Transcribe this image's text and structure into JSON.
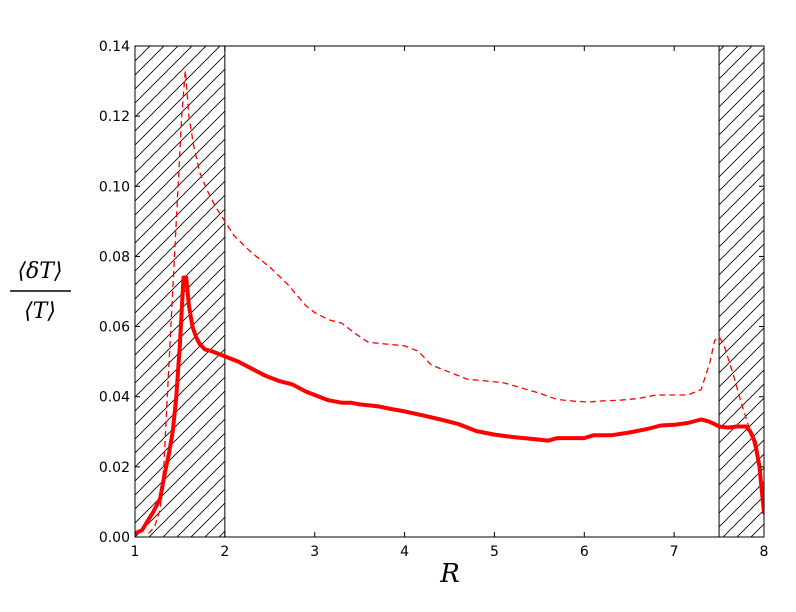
{
  "chart_data": {
    "type": "line",
    "xlabel": "R",
    "ylabel": {
      "numerator": "⟨δT⟩",
      "denominator": "⟨T⟩"
    },
    "xlim": [
      1,
      8
    ],
    "ylim": [
      0,
      0.14
    ],
    "xticks": [
      "1",
      "2",
      "3",
      "4",
      "5",
      "6",
      "7",
      "8"
    ],
    "yticks": [
      "0.00",
      "0.02",
      "0.04",
      "0.06",
      "0.08",
      "0.10",
      "0.12",
      "0.14"
    ],
    "grid": false,
    "legend": "none",
    "hatched_regions": [
      [
        1,
        2
      ],
      [
        7.5,
        8
      ]
    ],
    "series": [
      {
        "style": "solid",
        "color": "#ff0000",
        "points": [
          [
            1.0,
            0.001
          ],
          [
            1.08,
            0.002
          ],
          [
            1.15,
            0.005
          ],
          [
            1.2,
            0.007
          ],
          [
            1.28,
            0.011
          ],
          [
            1.33,
            0.018
          ],
          [
            1.38,
            0.024
          ],
          [
            1.42,
            0.03
          ],
          [
            1.46,
            0.04
          ],
          [
            1.5,
            0.055
          ],
          [
            1.54,
            0.074
          ],
          [
            1.57,
            0.074
          ],
          [
            1.6,
            0.066
          ],
          [
            1.64,
            0.06
          ],
          [
            1.68,
            0.057
          ],
          [
            1.72,
            0.055
          ],
          [
            1.78,
            0.0535
          ],
          [
            1.85,
            0.053
          ],
          [
            1.95,
            0.052
          ],
          [
            2.05,
            0.051
          ],
          [
            2.15,
            0.05
          ],
          [
            2.3,
            0.048
          ],
          [
            2.45,
            0.046
          ],
          [
            2.6,
            0.0445
          ],
          [
            2.75,
            0.0435
          ],
          [
            2.9,
            0.0415
          ],
          [
            3.0,
            0.0405
          ],
          [
            3.15,
            0.039
          ],
          [
            3.3,
            0.0383
          ],
          [
            3.4,
            0.0383
          ],
          [
            3.5,
            0.0378
          ],
          [
            3.7,
            0.0373
          ],
          [
            3.85,
            0.0365
          ],
          [
            4.0,
            0.0358
          ],
          [
            4.2,
            0.0347
          ],
          [
            4.4,
            0.0335
          ],
          [
            4.6,
            0.0322
          ],
          [
            4.8,
            0.0302
          ],
          [
            5.0,
            0.0292
          ],
          [
            5.2,
            0.0285
          ],
          [
            5.4,
            0.028
          ],
          [
            5.6,
            0.0275
          ],
          [
            5.7,
            0.0282
          ],
          [
            5.9,
            0.0282
          ],
          [
            6.0,
            0.0282
          ],
          [
            6.1,
            0.029
          ],
          [
            6.3,
            0.029
          ],
          [
            6.5,
            0.0298
          ],
          [
            6.7,
            0.0308
          ],
          [
            6.85,
            0.0318
          ],
          [
            7.0,
            0.032
          ],
          [
            7.15,
            0.0325
          ],
          [
            7.3,
            0.0335
          ],
          [
            7.38,
            0.033
          ],
          [
            7.45,
            0.0322
          ],
          [
            7.5,
            0.0315
          ],
          [
            7.6,
            0.0312
          ],
          [
            7.7,
            0.0315
          ],
          [
            7.8,
            0.0315
          ],
          [
            7.85,
            0.03
          ],
          [
            7.9,
            0.027
          ],
          [
            7.95,
            0.02
          ],
          [
            7.98,
            0.012
          ],
          [
            8.0,
            0.007
          ]
        ]
      },
      {
        "style": "dashed",
        "color": "#ff0000",
        "points": [
          [
            1.15,
            0.001
          ],
          [
            1.22,
            0.003
          ],
          [
            1.28,
            0.008
          ],
          [
            1.32,
            0.02
          ],
          [
            1.36,
            0.04
          ],
          [
            1.42,
            0.07
          ],
          [
            1.48,
            0.1
          ],
          [
            1.52,
            0.12
          ],
          [
            1.56,
            0.133
          ],
          [
            1.6,
            0.12
          ],
          [
            1.65,
            0.112
          ],
          [
            1.72,
            0.104
          ],
          [
            1.8,
            0.099
          ],
          [
            1.9,
            0.094
          ],
          [
            2.0,
            0.09
          ],
          [
            2.1,
            0.086
          ],
          [
            2.3,
            0.081
          ],
          [
            2.5,
            0.077
          ],
          [
            2.7,
            0.072
          ],
          [
            2.9,
            0.066
          ],
          [
            3.0,
            0.064
          ],
          [
            3.15,
            0.062
          ],
          [
            3.3,
            0.061
          ],
          [
            3.45,
            0.058
          ],
          [
            3.6,
            0.0555
          ],
          [
            3.8,
            0.055
          ],
          [
            4.0,
            0.0545
          ],
          [
            4.15,
            0.053
          ],
          [
            4.3,
            0.049
          ],
          [
            4.5,
            0.047
          ],
          [
            4.7,
            0.045
          ],
          [
            4.9,
            0.0445
          ],
          [
            5.1,
            0.044
          ],
          [
            5.3,
            0.0425
          ],
          [
            5.5,
            0.041
          ],
          [
            5.7,
            0.0392
          ],
          [
            5.9,
            0.0387
          ],
          [
            6.05,
            0.0385
          ],
          [
            6.2,
            0.0388
          ],
          [
            6.4,
            0.039
          ],
          [
            6.6,
            0.0395
          ],
          [
            6.8,
            0.0405
          ],
          [
            7.0,
            0.0405
          ],
          [
            7.15,
            0.0405
          ],
          [
            7.3,
            0.042
          ],
          [
            7.4,
            0.05
          ],
          [
            7.45,
            0.056
          ],
          [
            7.5,
            0.057
          ],
          [
            7.55,
            0.055
          ],
          [
            7.65,
            0.047
          ],
          [
            7.75,
            0.038
          ],
          [
            7.85,
            0.03
          ],
          [
            7.92,
            0.023
          ]
        ]
      }
    ]
  }
}
